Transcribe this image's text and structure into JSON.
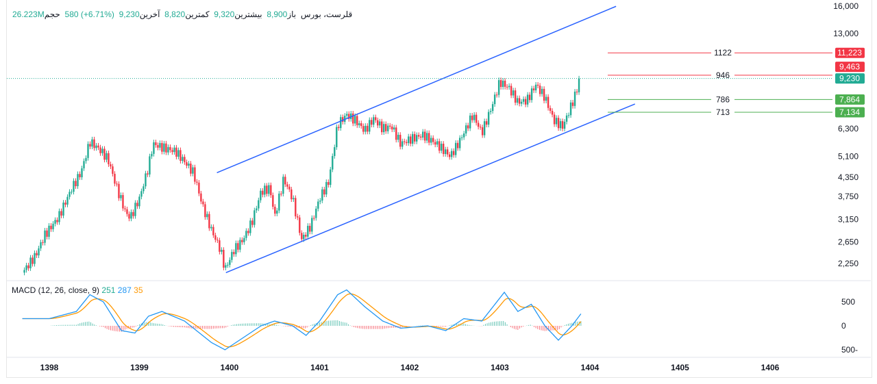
{
  "header": {
    "symbol": "قلرست، بورس",
    "open_label": "باز",
    "open": "8,900",
    "high_label": "بیشترین",
    "high": "9,320",
    "low_label": "کمترین",
    "low": "8,820",
    "close_label": "آخرین",
    "close": "9,230",
    "change": "580 (+6.71%)",
    "volume_label": "حجم",
    "volume": "26.223M"
  },
  "macd_legend": {
    "label": "MACD (12, 26, close, 9)",
    "macd": "251",
    "signal": "287",
    "hist": "35"
  },
  "colors": {
    "up": "#22ab94",
    "down": "#f23645",
    "channel": "#2962ff",
    "macd": "#2196f3",
    "signal": "#ff9800",
    "level_red": "#f23645",
    "level_green": "#4caf50"
  },
  "chart_data": [
    {
      "type": "candlestick",
      "scale": "log",
      "y_ticks": [
        "16,000",
        "13,000",
        "6,300",
        "5,100",
        "4,350",
        "3,750",
        "3,150",
        "2,650",
        "2,250"
      ],
      "y_tick_values": [
        16000,
        13000,
        6300,
        5100,
        4350,
        3750,
        3150,
        2650,
        2250
      ],
      "x_ticks": [
        "1398",
        "1399",
        "1400",
        "1401",
        "1402",
        "1403",
        "1404",
        "1405",
        "1406"
      ],
      "closes": [
        [
          1397.7,
          2100
        ],
        [
          1397.85,
          2400
        ],
        [
          1397.95,
          2800
        ],
        [
          1398.1,
          3200
        ],
        [
          1398.25,
          4000
        ],
        [
          1398.35,
          4500
        ],
        [
          1398.45,
          5700
        ],
        [
          1398.55,
          5400
        ],
        [
          1398.65,
          5000
        ],
        [
          1398.75,
          4000
        ],
        [
          1398.85,
          3300
        ],
        [
          1398.9,
          3200
        ],
        [
          1399.0,
          3700
        ],
        [
          1399.1,
          4700
        ],
        [
          1399.15,
          5600
        ],
        [
          1399.3,
          5400
        ],
        [
          1399.4,
          5300
        ],
        [
          1399.5,
          4900
        ],
        [
          1399.6,
          4500
        ],
        [
          1399.7,
          3500
        ],
        [
          1399.8,
          2900
        ],
        [
          1399.9,
          2500
        ],
        [
          1399.95,
          2150
        ],
        [
          1400.05,
          2500
        ],
        [
          1400.15,
          2700
        ],
        [
          1400.25,
          3100
        ],
        [
          1400.35,
          3900
        ],
        [
          1400.45,
          4000
        ],
        [
          1400.5,
          3200
        ],
        [
          1400.6,
          4300
        ],
        [
          1400.7,
          3700
        ],
        [
          1400.8,
          2700
        ],
        [
          1400.9,
          3000
        ],
        [
          1401.0,
          3700
        ],
        [
          1401.1,
          4200
        ],
        [
          1401.2,
          6500
        ],
        [
          1401.3,
          7000
        ],
        [
          1401.4,
          6700
        ],
        [
          1401.5,
          6200
        ],
        [
          1401.6,
          6800
        ],
        [
          1401.7,
          6300
        ],
        [
          1401.8,
          6400
        ],
        [
          1401.9,
          5600
        ],
        [
          1402.0,
          5800
        ],
        [
          1402.15,
          6000
        ],
        [
          1402.3,
          5600
        ],
        [
          1402.45,
          5100
        ],
        [
          1402.55,
          5700
        ],
        [
          1402.7,
          7000
        ],
        [
          1402.8,
          6100
        ],
        [
          1402.9,
          7300
        ],
        [
          1403.0,
          9000
        ],
        [
          1403.1,
          8600
        ],
        [
          1403.2,
          7700
        ],
        [
          1403.3,
          7800
        ],
        [
          1403.4,
          8800
        ],
        [
          1403.5,
          8000
        ],
        [
          1403.6,
          6700
        ],
        [
          1403.7,
          6400
        ],
        [
          1403.8,
          7600
        ],
        [
          1403.9,
          9230
        ]
      ],
      "last_price": 9230,
      "last_price_label": "9,230",
      "trendlines": [
        {
          "from": [
            1399.86,
            4500
          ],
          "to": [
            1404.29,
            16000
          ]
        },
        {
          "from": [
            1399.96,
            2100
          ],
          "to": [
            1404.5,
            7600
          ]
        }
      ],
      "levels": [
        {
          "label": "1122",
          "price": 11223,
          "price_label": "11,223",
          "color": "red"
        },
        {
          "label": "946",
          "price": 9463,
          "price_label": "9,463",
          "color": "red"
        },
        {
          "label": "786",
          "price": 7864,
          "price_label": "7,864",
          "color": "green"
        },
        {
          "label": "713",
          "price": 7134,
          "price_label": "7,134",
          "color": "green"
        }
      ]
    },
    {
      "type": "line",
      "y_ticks": [
        "500",
        "0",
        "500-"
      ],
      "y_tick_values": [
        500,
        0,
        -500
      ],
      "macd": [
        [
          1397.7,
          150
        ],
        [
          1398.0,
          150
        ],
        [
          1398.3,
          300
        ],
        [
          1398.45,
          650
        ],
        [
          1398.6,
          500
        ],
        [
          1398.8,
          -100
        ],
        [
          1398.95,
          -150
        ],
        [
          1399.1,
          200
        ],
        [
          1399.25,
          300
        ],
        [
          1399.5,
          100
        ],
        [
          1399.8,
          -350
        ],
        [
          1399.95,
          -500
        ],
        [
          1400.15,
          -250
        ],
        [
          1400.35,
          0
        ],
        [
          1400.5,
          100
        ],
        [
          1400.7,
          0
        ],
        [
          1400.85,
          -200
        ],
        [
          1401.0,
          100
        ],
        [
          1401.2,
          650
        ],
        [
          1401.3,
          750
        ],
        [
          1401.5,
          400
        ],
        [
          1401.7,
          100
        ],
        [
          1401.9,
          -50
        ],
        [
          1402.2,
          0
        ],
        [
          1402.4,
          -100
        ],
        [
          1402.6,
          150
        ],
        [
          1402.8,
          100
        ],
        [
          1403.05,
          700
        ],
        [
          1403.2,
          300
        ],
        [
          1403.35,
          450
        ],
        [
          1403.5,
          0
        ],
        [
          1403.65,
          -300
        ],
        [
          1403.8,
          0
        ],
        [
          1403.9,
          250
        ]
      ]
    }
  ]
}
